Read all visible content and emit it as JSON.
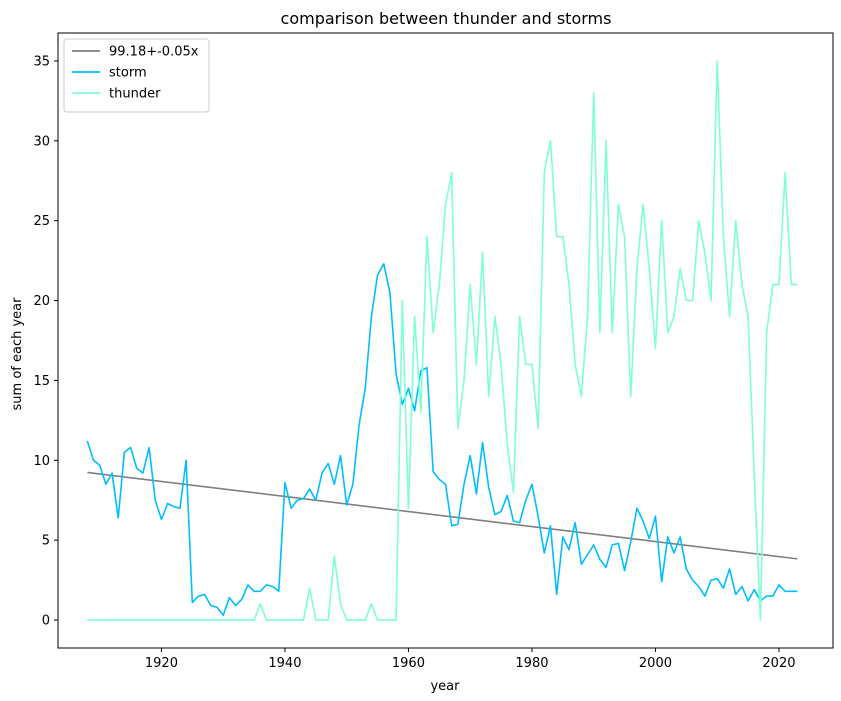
{
  "chart_data": {
    "type": "line",
    "title": "comparison between thunder and storms",
    "xlabel": "year",
    "ylabel": "sum of each year",
    "xlim": [
      1903.25,
      2028.75
    ],
    "ylim": [
      -1.75,
      36.75
    ],
    "xticks": [
      1920,
      1940,
      1960,
      1980,
      2000,
      2020
    ],
    "yticks": [
      0,
      5,
      10,
      15,
      20,
      25,
      30,
      35
    ],
    "grid": false,
    "legend_position": "top-left",
    "x": [
      1908,
      1909,
      1910,
      1911,
      1912,
      1913,
      1914,
      1915,
      1916,
      1917,
      1918,
      1919,
      1920,
      1921,
      1922,
      1923,
      1924,
      1925,
      1926,
      1927,
      1928,
      1929,
      1930,
      1931,
      1932,
      1933,
      1934,
      1935,
      1936,
      1937,
      1938,
      1939,
      1940,
      1941,
      1942,
      1943,
      1944,
      1945,
      1946,
      1947,
      1948,
      1949,
      1950,
      1951,
      1952,
      1953,
      1954,
      1955,
      1956,
      1957,
      1958,
      1959,
      1960,
      1961,
      1962,
      1963,
      1964,
      1965,
      1966,
      1967,
      1968,
      1969,
      1970,
      1971,
      1972,
      1973,
      1974,
      1975,
      1976,
      1977,
      1978,
      1979,
      1980,
      1981,
      1982,
      1983,
      1984,
      1985,
      1986,
      1987,
      1988,
      1989,
      1990,
      1991,
      1992,
      1993,
      1994,
      1995,
      1996,
      1997,
      1998,
      1999,
      2000,
      2001,
      2002,
      2003,
      2004,
      2005,
      2006,
      2007,
      2008,
      2009,
      2010,
      2011,
      2012,
      2013,
      2014,
      2015,
      2016,
      2017,
      2018,
      2019,
      2020,
      2021,
      2022,
      2023
    ],
    "series": [
      {
        "name": "99.18+-0.05x",
        "color": "#808080",
        "kind": "regression",
        "x": [
          1908,
          2023
        ],
        "values": [
          9.24,
          3.83
        ]
      },
      {
        "name": "storm",
        "color": "#00bfff",
        "values": [
          11.2,
          10.0,
          9.7,
          8.5,
          9.2,
          6.4,
          10.5,
          10.8,
          9.5,
          9.2,
          10.8,
          7.5,
          6.3,
          7.3,
          7.1,
          7.0,
          10.0,
          1.1,
          1.5,
          1.6,
          0.9,
          0.8,
          0.3,
          1.4,
          0.9,
          1.3,
          2.2,
          1.8,
          1.8,
          2.2,
          2.1,
          1.8,
          8.6,
          7.0,
          7.5,
          7.6,
          8.2,
          7.5,
          9.2,
          9.8,
          8.5,
          10.3,
          7.2,
          8.5,
          12.2,
          14.5,
          19.0,
          21.6,
          22.3,
          20.5,
          15.4,
          13.5,
          14.5,
          13.1,
          15.6,
          15.8,
          9.3,
          8.8,
          8.5,
          5.9,
          6.0,
          8.5,
          10.3,
          7.9,
          11.1,
          8.3,
          6.6,
          6.8,
          7.8,
          6.2,
          6.1,
          7.5,
          8.5,
          6.5,
          4.2,
          5.9,
          1.6,
          5.2,
          4.4,
          6.1,
          3.5,
          4.1,
          4.7,
          3.8,
          3.3,
          4.7,
          4.8,
          3.1,
          4.9,
          7.0,
          6.2,
          5.1,
          6.5,
          2.4,
          5.2,
          4.2,
          5.2,
          3.2,
          2.5,
          2.1,
          1.5,
          2.5,
          2.6,
          2.0,
          3.2,
          1.6,
          2.1,
          1.2,
          1.9,
          1.2,
          1.5,
          1.5,
          2.2,
          1.8,
          1.8,
          1.8
        ]
      },
      {
        "name": "thunder",
        "color": "#7fffd4",
        "values": [
          0,
          0,
          0,
          0,
          0,
          0,
          0,
          0,
          0,
          0,
          0,
          0,
          0,
          0,
          0,
          0,
          0,
          0,
          0,
          0,
          0,
          0,
          0,
          0,
          0,
          0,
          0,
          0,
          1,
          0,
          0,
          0,
          0,
          0,
          0,
          0,
          2,
          0,
          0,
          0,
          4,
          1,
          0,
          0,
          0,
          0,
          1,
          0,
          0,
          0,
          0,
          20,
          7,
          19,
          13,
          24,
          18,
          21,
          26,
          28,
          12,
          15,
          21,
          16,
          23,
          14,
          19,
          16,
          11,
          8,
          19,
          16,
          16,
          12,
          28,
          30,
          24,
          24,
          21,
          16,
          14,
          19,
          33,
          18,
          30,
          18,
          26,
          24,
          14,
          22,
          26,
          22,
          17,
          25,
          18,
          19,
          22,
          20,
          20,
          25,
          23,
          20,
          35,
          24,
          19,
          25,
          21,
          19,
          9,
          0,
          18,
          21,
          21,
          28,
          21,
          21
        ]
      }
    ]
  }
}
